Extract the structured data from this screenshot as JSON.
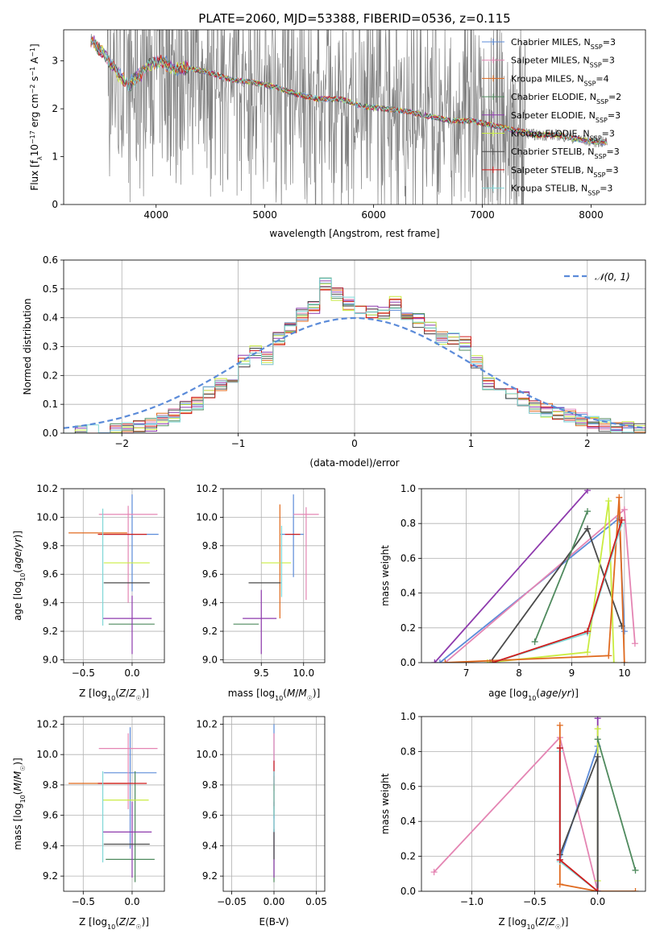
{
  "figure_title": "PLATE=2060, MJD=53388, FIBERID=0536, z=0.115",
  "colors": {
    "Chabrier MILES": "#5b8bd9",
    "Salpeter MILES": "#e485b3",
    "Kroupa MILES": "#e06a1f",
    "Chabrier ELODIE": "#4f8a5e",
    "Salpeter ELODIE": "#8e3aad",
    "Kroupa ELODIE": "#c9ec40",
    "Chabrier STELIB": "#4a4a4a",
    "Salpeter STELIB": "#d01c1c",
    "Kroupa STELIB": "#7fd6d6",
    "data": "#808080",
    "normal": "#5b8bd9"
  },
  "chart_data": [
    {
      "id": "spectrum",
      "type": "line",
      "title": "PLATE=2060, MJD=53388, FIBERID=0536, z=0.115",
      "xlabel": "wavelength [Angstrom, rest frame]",
      "ylabel_parts": [
        "Flux [f",
        "λ",
        "10",
        "−17",
        " erg cm",
        "−2",
        " s",
        "−1",
        " A",
        "−1",
        "]"
      ],
      "xlim": [
        3150,
        8500
      ],
      "ylim": [
        0,
        3.65
      ],
      "xticks": [
        4000,
        5000,
        6000,
        7000,
        8000
      ],
      "yticks": [
        0,
        1,
        2,
        3
      ],
      "legend": [
        {
          "name": "Chabrier MILES",
          "nssp": "3"
        },
        {
          "name": "Salpeter MILES",
          "nssp": "3"
        },
        {
          "name": "Kroupa MILES",
          "nssp": "4"
        },
        {
          "name": "Chabrier ELODIE",
          "nssp": "2"
        },
        {
          "name": "Salpeter ELODIE",
          "nssp": "3"
        },
        {
          "name": "Kroupa ELODIE",
          "nssp": "3"
        },
        {
          "name": "Chabrier STELIB",
          "nssp": "3"
        },
        {
          "name": "Salpeter STELIB",
          "nssp": "3"
        },
        {
          "name": "Kroupa STELIB",
          "nssp": "3"
        }
      ],
      "legend_sub": "SSP",
      "model_continuum": {
        "x": [
          3400,
          3450,
          3550,
          3650,
          3750,
          3850,
          3950,
          4050,
          4150,
          4300,
          4500,
          4700,
          4900,
          5100,
          5300,
          5500,
          5700,
          5900,
          6100,
          6300,
          6500,
          6700,
          6900,
          7100,
          7300,
          7500,
          7700,
          7900,
          8100
        ],
        "y": [
          3.45,
          3.3,
          3.05,
          2.75,
          2.5,
          2.7,
          2.95,
          3.0,
          2.85,
          2.85,
          2.75,
          2.6,
          2.55,
          2.45,
          2.3,
          2.2,
          2.2,
          2.05,
          2.0,
          1.95,
          1.85,
          1.75,
          1.75,
          1.65,
          1.55,
          1.45,
          1.45,
          1.35,
          1.3
        ]
      }
    },
    {
      "id": "residuals",
      "type": "histogram",
      "xlabel": "(data-model)/error",
      "ylabel": "Normed distribution",
      "xlim": [
        -2.5,
        2.5
      ],
      "ylim": [
        0,
        0.6
      ],
      "xticks": [
        -2,
        -1,
        0,
        1,
        2
      ],
      "yticks": [
        0,
        0.1,
        0.2,
        0.3,
        0.4,
        0.5,
        0.6
      ],
      "legend": "𝒩(0, 1)",
      "bin_edges": [
        -2.5,
        -2.4,
        -2.3,
        -2.2,
        -2.1,
        -2.0,
        -1.9,
        -1.8,
        -1.7,
        -1.6,
        -1.5,
        -1.4,
        -1.3,
        -1.2,
        -1.1,
        -1.0,
        -0.9,
        -0.8,
        -0.7,
        -0.6,
        -0.5,
        -0.4,
        -0.3,
        -0.2,
        -0.1,
        0.0,
        0.1,
        0.2,
        0.3,
        0.4,
        0.5,
        0.6,
        0.7,
        0.8,
        0.9,
        1.0,
        1.1,
        1.2,
        1.3,
        1.4,
        1.5,
        1.6,
        1.7,
        1.8,
        1.9,
        2.0,
        2.1,
        2.2,
        2.3,
        2.4,
        2.5
      ],
      "values": [
        0.005,
        0.005,
        0.005,
        0.01,
        0.01,
        0.015,
        0.02,
        0.03,
        0.05,
        0.06,
        0.09,
        0.1,
        0.14,
        0.17,
        0.19,
        0.25,
        0.28,
        0.26,
        0.33,
        0.37,
        0.41,
        0.44,
        0.52,
        0.48,
        0.45,
        0.43,
        0.42,
        0.42,
        0.45,
        0.4,
        0.39,
        0.36,
        0.33,
        0.33,
        0.31,
        0.25,
        0.17,
        0.16,
        0.14,
        0.12,
        0.09,
        0.08,
        0.065,
        0.06,
        0.05,
        0.04,
        0.03,
        0.02,
        0.015,
        0.01
      ]
    },
    {
      "id": "age_vs_Z",
      "type": "errorbar",
      "xlabel": "Z [log10(Z/Z☉)]",
      "ylabel": "age [log10(age/yr)]",
      "xlim": [
        -0.7,
        0.33
      ],
      "ylim": [
        8.98,
        10.2
      ],
      "xticks": [
        -0.5,
        0.0
      ],
      "yticks": [
        9.0,
        9.2,
        9.4,
        9.6,
        9.8,
        10.0,
        10.2
      ],
      "points": [
        {
          "series": "Chabrier MILES",
          "x": 0.0,
          "y": 9.88,
          "xerr": [
            0.3,
            0.27
          ],
          "yerr": [
            0.4,
            0.28
          ]
        },
        {
          "series": "Salpeter MILES",
          "x": -0.04,
          "y": 10.02,
          "xerr": [
            0.3,
            0.3
          ],
          "yerr": [
            0.62,
            0.06
          ]
        },
        {
          "series": "Kroupa MILES",
          "x": -0.25,
          "y": 9.89,
          "xerr": [
            0.4,
            0.2
          ],
          "yerr": [
            0.0,
            0.0
          ]
        },
        {
          "series": "Chabrier ELODIE",
          "x": 0.03,
          "y": 9.25,
          "xerr": [
            0.27,
            0.2
          ],
          "yerr": [
            0.0,
            0.0
          ]
        },
        {
          "series": "Salpeter ELODIE",
          "x": 0.0,
          "y": 9.29,
          "xerr": [
            0.3,
            0.2
          ],
          "yerr": [
            0.25,
            0.16
          ]
        },
        {
          "series": "Kroupa ELODIE",
          "x": -0.02,
          "y": 9.68,
          "xerr": [
            0.27,
            0.2
          ],
          "yerr": [
            0.0,
            0.0
          ]
        },
        {
          "series": "Chabrier STELIB",
          "x": -0.02,
          "y": 9.54,
          "xerr": [
            0.27,
            0.2
          ],
          "yerr": [
            0.0,
            0.0
          ]
        },
        {
          "series": "Salpeter STELIB",
          "x": -0.05,
          "y": 9.88,
          "xerr": [
            0.3,
            0.2
          ],
          "yerr": [
            0.0,
            0.0
          ]
        },
        {
          "series": "Kroupa STELIB",
          "x": -0.3,
          "y": 9.74,
          "xerr": [
            0.0,
            0.0
          ],
          "yerr": [
            0.5,
            0.32
          ]
        }
      ]
    },
    {
      "id": "age_vs_mass",
      "type": "errorbar",
      "xlabel": "mass [log10(M/M☉)]",
      "ylabel": "",
      "xlim": [
        9.05,
        10.25
      ],
      "ylim": [
        8.98,
        10.2
      ],
      "xticks": [
        9.5,
        10.0
      ],
      "yticks": [
        9.0,
        9.2,
        9.4,
        9.6,
        9.8,
        10.0,
        10.2
      ],
      "points": [
        {
          "series": "Chabrier MILES",
          "x": 9.88,
          "y": 9.88,
          "xerr": [
            0.15,
            0.12
          ],
          "yerr": [
            0.3,
            0.28
          ]
        },
        {
          "series": "Salpeter MILES",
          "x": 10.03,
          "y": 10.02,
          "xerr": [
            0.15,
            0.15
          ],
          "yerr": [
            0.6,
            0.05
          ]
        },
        {
          "series": "Kroupa MILES",
          "x": 9.72,
          "y": 9.89,
          "xerr": [
            0.0,
            0.0
          ],
          "yerr": [
            0.6,
            0.2
          ]
        },
        {
          "series": "Chabrier ELODIE",
          "x": 9.32,
          "y": 9.25,
          "xerr": [
            0.15,
            0.15
          ],
          "yerr": [
            0.0,
            0.0
          ]
        },
        {
          "series": "Salpeter ELODIE",
          "x": 9.5,
          "y": 9.29,
          "xerr": [
            0.22,
            0.18
          ],
          "yerr": [
            0.25,
            0.2
          ]
        },
        {
          "series": "Kroupa ELODIE",
          "x": 9.7,
          "y": 9.68,
          "xerr": [
            0.2,
            0.15
          ],
          "yerr": [
            0.0,
            0.0
          ]
        },
        {
          "series": "Chabrier STELIB",
          "x": 9.55,
          "y": 9.54,
          "xerr": [
            0.2,
            0.18
          ],
          "yerr": [
            0.0,
            0.0
          ]
        },
        {
          "series": "Salpeter STELIB",
          "x": 9.88,
          "y": 9.88,
          "xerr": [
            0.1,
            0.08
          ],
          "yerr": [
            0.0,
            0.0
          ]
        },
        {
          "series": "Kroupa STELIB",
          "x": 9.74,
          "y": 9.74,
          "xerr": [
            0.0,
            0.0
          ],
          "yerr": [
            0.3,
            0.2
          ]
        }
      ]
    },
    {
      "id": "weight_vs_age",
      "type": "line",
      "xlabel": "age [log10(age/yr)]",
      "ylabel": "mass weight",
      "xlim": [
        6.15,
        10.4
      ],
      "ylim": [
        0,
        1.0
      ],
      "xticks": [
        7,
        8,
        9,
        10
      ],
      "yticks": [
        0.0,
        0.2,
        0.4,
        0.6,
        0.8,
        1.0
      ],
      "series": [
        {
          "name": "Salpeter ELODIE",
          "x": [
            6.4,
            9.3
          ],
          "y": [
            0.0,
            0.99
          ]
        },
        {
          "name": "Chabrier MILES",
          "x": [
            6.5,
            9.9,
            10.0
          ],
          "y": [
            0.0,
            0.83,
            0.18
          ]
        },
        {
          "name": "Salpeter MILES",
          "x": [
            6.6,
            10.0,
            10.2
          ],
          "y": [
            0.0,
            0.88,
            0.11
          ]
        },
        {
          "name": "Chabrier STELIB",
          "x": [
            7.45,
            9.3,
            9.95
          ],
          "y": [
            0.0,
            0.77,
            0.21
          ]
        },
        {
          "name": "Chabrier ELODIE",
          "x": [
            8.3,
            9.3
          ],
          "y": [
            0.12,
            0.87
          ]
        },
        {
          "name": "Kroupa ELODIE",
          "x": [
            7.4,
            9.3,
            9.7,
            9.8
          ],
          "y": [
            0.0,
            0.06,
            0.93,
            0.0
          ]
        },
        {
          "name": "Kroupa MILES",
          "x": [
            6.6,
            9.7,
            9.9,
            10.0
          ],
          "y": [
            0.0,
            0.04,
            0.95,
            0.0
          ]
        },
        {
          "name": "Kroupa STELIB",
          "x": [
            7.5,
            9.3,
            9.95
          ],
          "y": [
            0.0,
            0.17,
            0.8
          ]
        },
        {
          "name": "Salpeter STELIB",
          "x": [
            7.5,
            9.3,
            9.95
          ],
          "y": [
            0.0,
            0.18,
            0.82
          ]
        }
      ]
    },
    {
      "id": "mass_vs_Z",
      "type": "errorbar",
      "xlabel": "Z [log10(Z/Z☉)]",
      "ylabel": "mass [log10(M/M☉)]",
      "xlim": [
        -0.7,
        0.33
      ],
      "ylim": [
        9.1,
        10.25
      ],
      "xticks": [
        -0.5,
        0.0
      ],
      "yticks": [
        9.2,
        9.4,
        9.6,
        9.8,
        10.0,
        10.2
      ],
      "points": [
        {
          "series": "Chabrier MILES",
          "x": -0.02,
          "y": 9.88,
          "xerr": [
            0.27,
            0.27
          ],
          "yerr": [
            0.5,
            0.3
          ]
        },
        {
          "series": "Salpeter MILES",
          "x": -0.04,
          "y": 10.04,
          "xerr": [
            0.3,
            0.3
          ],
          "yerr": [
            0.4,
            0.1
          ]
        },
        {
          "series": "Kroupa MILES",
          "x": -0.25,
          "y": 9.81,
          "xerr": [
            0.4,
            0.2
          ],
          "yerr": [
            0.0,
            0.0
          ]
        },
        {
          "series": "Chabrier ELODIE",
          "x": 0.03,
          "y": 9.31,
          "xerr": [
            0.3,
            0.2
          ],
          "yerr": [
            0.15,
            0.58
          ]
        },
        {
          "series": "Salpeter ELODIE",
          "x": 0.0,
          "y": 9.49,
          "xerr": [
            0.3,
            0.2
          ],
          "yerr": [
            0.3,
            0.2
          ]
        },
        {
          "series": "Kroupa ELODIE",
          "x": -0.03,
          "y": 9.7,
          "xerr": [
            0.27,
            0.2
          ],
          "yerr": [
            0.0,
            0.0
          ]
        },
        {
          "series": "Chabrier STELIB",
          "x": -0.02,
          "y": 9.41,
          "xerr": [
            0.27,
            0.2
          ],
          "yerr": [
            0.0,
            0.0
          ]
        },
        {
          "series": "Salpeter STELIB",
          "x": -0.05,
          "y": 9.81,
          "xerr": [
            0.3,
            0.2
          ],
          "yerr": [
            0.0,
            0.0
          ]
        },
        {
          "series": "Kroupa STELIB",
          "x": -0.3,
          "y": 9.69,
          "xerr": [
            0.0,
            0.0
          ],
          "yerr": [
            0.4,
            0.2
          ]
        }
      ]
    },
    {
      "id": "mass_vs_ebv",
      "type": "errorbar",
      "xlabel": "E(B-V)",
      "ylabel": "",
      "xlim": [
        -0.06,
        0.06
      ],
      "ylim": [
        9.1,
        10.25
      ],
      "xticks": [
        -0.05,
        0.0,
        0.05
      ],
      "yticks": [
        9.2,
        9.4,
        9.6,
        9.8,
        10.0,
        10.2
      ],
      "points": [
        {
          "series": "Chabrier MILES",
          "x": 0.0,
          "y": 9.88,
          "xerr": [
            0.0,
            0.0
          ],
          "yerr": [
            0.3,
            0.32
          ]
        },
        {
          "series": "Salpeter MILES",
          "x": 0.0,
          "y": 10.04,
          "xerr": [
            0.0,
            0.0
          ],
          "yerr": [
            0.4,
            0.1
          ]
        },
        {
          "series": "Kroupa MILES",
          "x": 0.0,
          "y": 9.81,
          "xerr": [
            0.0,
            0.0
          ],
          "yerr": [
            0.05,
            0.05
          ]
        },
        {
          "series": "Chabrier ELODIE",
          "x": 0.0,
          "y": 9.31,
          "xerr": [
            0.0,
            0.0
          ],
          "yerr": [
            0.15,
            0.5
          ]
        },
        {
          "series": "Salpeter ELODIE",
          "x": 0.0,
          "y": 9.49,
          "xerr": [
            0.0,
            0.0
          ],
          "yerr": [
            0.3,
            0.2
          ]
        },
        {
          "series": "Kroupa ELODIE",
          "x": 0.0,
          "y": 9.7,
          "xerr": [
            0.0,
            0.0
          ],
          "yerr": [
            0.1,
            0.1
          ]
        },
        {
          "series": "Chabrier STELIB",
          "x": 0.0,
          "y": 9.41,
          "xerr": [
            0.0,
            0.0
          ],
          "yerr": [
            0.1,
            0.1
          ]
        },
        {
          "series": "Salpeter STELIB",
          "x": 0.0,
          "y": 9.81,
          "xerr": [
            0.0,
            0.0
          ],
          "yerr": [
            0.15,
            0.15
          ]
        },
        {
          "series": "Kroupa STELIB",
          "x": 0.0,
          "y": 9.69,
          "xerr": [
            0.0,
            0.0
          ],
          "yerr": [
            0.2,
            0.2
          ]
        }
      ]
    },
    {
      "id": "weight_vs_Z",
      "type": "line",
      "xlabel": "Z [log10(Z/Z☉)]",
      "ylabel": "mass weight",
      "xlim": [
        -1.4,
        0.38
      ],
      "ylim": [
        0,
        1.0
      ],
      "xticks": [
        -1.0,
        -0.5,
        0.0
      ],
      "yticks": [
        0.0,
        0.2,
        0.4,
        0.6,
        0.8,
        1.0
      ],
      "series": [
        {
          "name": "Salpeter MILES",
          "x": [
            -1.3,
            -0.3,
            0.0
          ],
          "y": [
            0.11,
            0.88,
            0.0
          ]
        },
        {
          "name": "Kroupa MILES",
          "x": [
            -0.3,
            -0.3,
            0.0,
            0.3
          ],
          "y": [
            0.95,
            0.04,
            0.0,
            0.0
          ]
        },
        {
          "name": "Chabrier MILES",
          "x": [
            -0.3,
            -0.3,
            0.0,
            0.0
          ],
          "y": [
            0.82,
            0.18,
            0.83,
            0.0
          ]
        },
        {
          "name": "Salpeter ELODIE",
          "x": [
            0.0,
            0.0
          ],
          "y": [
            0.99,
            0.0
          ]
        },
        {
          "name": "Kroupa ELODIE",
          "x": [
            0.0,
            0.0
          ],
          "y": [
            0.93,
            0.06
          ]
        },
        {
          "name": "Chabrier ELODIE",
          "x": [
            0.0,
            0.3
          ],
          "y": [
            0.87,
            0.12
          ]
        },
        {
          "name": "Chabrier STELIB",
          "x": [
            -0.3,
            0.0,
            0.0
          ],
          "y": [
            0.21,
            0.77,
            0.0
          ]
        },
        {
          "name": "Kroupa STELIB",
          "x": [
            -0.3,
            -0.3,
            0.0
          ],
          "y": [
            0.8,
            0.17,
            0.0
          ]
        },
        {
          "name": "Salpeter STELIB",
          "x": [
            -0.3,
            -0.3,
            0.0
          ],
          "y": [
            0.82,
            0.18,
            0.0
          ]
        }
      ]
    }
  ]
}
